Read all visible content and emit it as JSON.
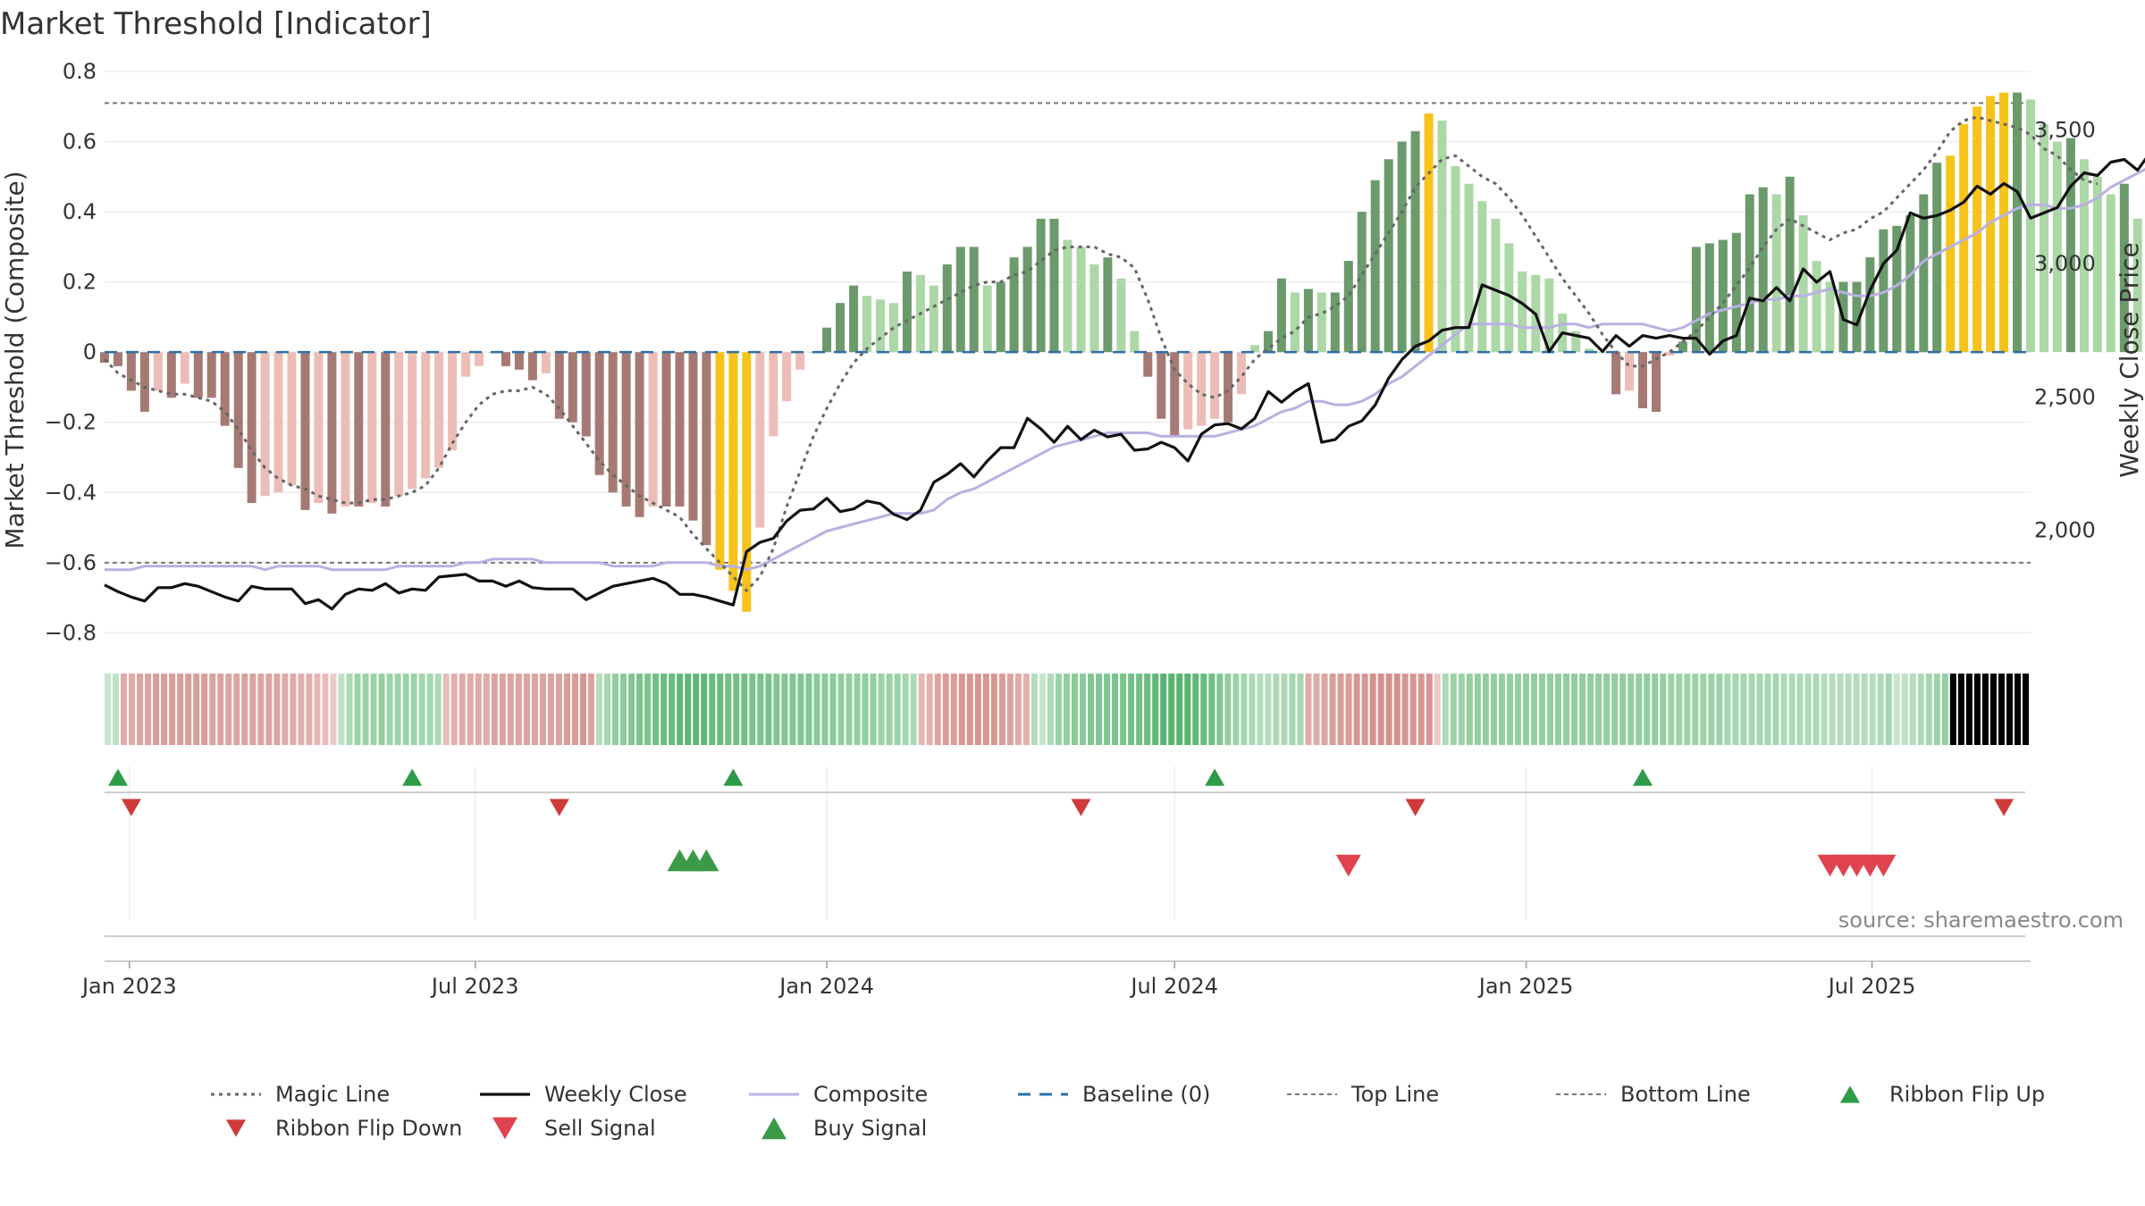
{
  "title": "Market Threshold [Indicator]",
  "source": "source: sharemaestro.com",
  "colors": {
    "bar_pos_strong": "#6b9a6b",
    "bar_pos_light": "#acd7a6",
    "bar_neg_strong": "#a67a74",
    "bar_neg_light": "#ecbdb6",
    "bar_extreme": "#f7c21a",
    "magic": "#666666",
    "close": "#111111",
    "composite": "#b9b0e3",
    "baseline": "#2c6fa6",
    "guide": "#777777",
    "flip_up": "#2e9b48",
    "flip_down": "#d13a3a",
    "sell": "#e0424f",
    "buy": "#3a9a48"
  },
  "chart_data": {
    "type": "bar",
    "left_axis": {
      "label": "Market Threshold (Composite)",
      "ylim": [
        -0.85,
        0.8
      ],
      "ticks": [
        0.8,
        0.6,
        0.4,
        0.2,
        0,
        -0.2,
        -0.4,
        -0.6,
        -0.8
      ],
      "tick_labels": [
        "0.8",
        "0.6",
        "0.4",
        "0.2",
        "0",
        "−0.2",
        "−0.4",
        "−0.6",
        "−0.8"
      ]
    },
    "right_axis": {
      "label": "Weekly Close Price",
      "ylim": [
        1550,
        3720
      ],
      "ticks": [
        3500,
        3000,
        2500,
        2000
      ],
      "tick_labels": [
        "3,500",
        "3,000",
        "2,500",
        "2,000"
      ]
    },
    "x_axis": {
      "start": "2022-12-19",
      "end": "2025-09-22",
      "ticks": [
        "2023-01-01",
        "2023-07-01",
        "2024-01-01",
        "2024-07-01",
        "2025-01-01",
        "2025-07-01"
      ],
      "tick_labels": [
        "Jan 2023",
        "Jul 2023",
        "Jan 2024",
        "Jul 2024",
        "Jan 2025",
        "Jul 2025"
      ]
    },
    "week_start": "2022-12-19",
    "guides": {
      "top_line": 0.71,
      "bottom_line": -0.6,
      "baseline": 0
    },
    "bars": [
      -0.03,
      -0.04,
      -0.11,
      -0.17,
      -0.11,
      -0.13,
      -0.09,
      -0.13,
      -0.13,
      -0.21,
      -0.33,
      -0.43,
      -0.41,
      -0.4,
      -0.38,
      -0.45,
      -0.43,
      -0.46,
      -0.44,
      -0.44,
      -0.43,
      -0.44,
      -0.41,
      -0.39,
      -0.36,
      -0.33,
      -0.28,
      -0.07,
      -0.04,
      -0.0,
      -0.04,
      -0.05,
      -0.08,
      -0.06,
      -0.19,
      -0.2,
      -0.24,
      -0.35,
      -0.4,
      -0.44,
      -0.47,
      -0.44,
      -0.44,
      -0.44,
      -0.48,
      -0.55,
      -0.62,
      -0.68,
      -0.74,
      -0.5,
      -0.24,
      -0.14,
      -0.05,
      0.0,
      0.07,
      0.14,
      0.19,
      0.16,
      0.15,
      0.14,
      0.23,
      0.22,
      0.19,
      0.25,
      0.3,
      0.3,
      0.19,
      0.2,
      0.27,
      0.3,
      0.38,
      0.38,
      0.32,
      0.3,
      0.25,
      0.27,
      0.21,
      0.06,
      -0.07,
      -0.19,
      -0.24,
      -0.22,
      -0.21,
      -0.19,
      -0.2,
      -0.12,
      0.02,
      0.06,
      0.21,
      0.17,
      0.18,
      0.17,
      0.17,
      0.26,
      0.4,
      0.49,
      0.55,
      0.6,
      0.63,
      0.68,
      0.66,
      0.53,
      0.48,
      0.43,
      0.38,
      0.31,
      0.23,
      0.22,
      0.21,
      0.11,
      0.06,
      0.01,
      0.0,
      -0.12,
      -0.11,
      -0.16,
      -0.17,
      -0.01,
      0.03,
      0.3,
      0.31,
      0.32,
      0.34,
      0.45,
      0.47,
      0.45,
      0.5,
      0.39,
      0.26,
      0.2,
      0.2,
      0.2,
      0.27,
      0.35,
      0.36,
      0.39,
      0.45,
      0.54,
      0.56,
      0.65,
      0.7,
      0.73,
      0.74,
      0.74,
      0.72,
      0.65,
      0.6,
      0.61,
      0.55,
      0.5,
      0.45,
      0.48,
      0.38,
      0.37
    ],
    "extreme_bars": [
      46,
      47,
      48,
      99,
      138,
      139,
      140,
      141,
      142
    ],
    "series": [
      {
        "name": "Magic Line",
        "values": [
          -0.02,
          -0.06,
          -0.08,
          -0.1,
          -0.11,
          -0.12,
          -0.12,
          -0.13,
          -0.14,
          -0.17,
          -0.22,
          -0.28,
          -0.33,
          -0.36,
          -0.38,
          -0.39,
          -0.41,
          -0.42,
          -0.43,
          -0.43,
          -0.42,
          -0.42,
          -0.41,
          -0.4,
          -0.38,
          -0.33,
          -0.26,
          -0.2,
          -0.15,
          -0.12,
          -0.11,
          -0.11,
          -0.1,
          -0.12,
          -0.16,
          -0.21,
          -0.26,
          -0.31,
          -0.35,
          -0.38,
          -0.41,
          -0.43,
          -0.45,
          -0.47,
          -0.52,
          -0.56,
          -0.6,
          -0.64,
          -0.68,
          -0.64,
          -0.56,
          -0.44,
          -0.34,
          -0.24,
          -0.16,
          -0.09,
          -0.03,
          0.01,
          0.04,
          0.07,
          0.09,
          0.11,
          0.13,
          0.15,
          0.17,
          0.19,
          0.2,
          0.2,
          0.22,
          0.23,
          0.26,
          0.29,
          0.3,
          0.3,
          0.3,
          0.28,
          0.27,
          0.24,
          0.15,
          0.04,
          -0.05,
          -0.09,
          -0.12,
          -0.13,
          -0.11,
          -0.07,
          -0.02,
          0.01,
          0.04,
          0.06,
          0.1,
          0.11,
          0.13,
          0.16,
          0.22,
          0.28,
          0.34,
          0.4,
          0.47,
          0.51,
          0.55,
          0.56,
          0.53,
          0.5,
          0.48,
          0.44,
          0.39,
          0.33,
          0.27,
          0.21,
          0.16,
          0.11,
          0.05,
          0.0,
          -0.04,
          -0.04,
          -0.02,
          0.0,
          0.03,
          0.06,
          0.1,
          0.14,
          0.19,
          0.24,
          0.3,
          0.35,
          0.38,
          0.36,
          0.34,
          0.32,
          0.34,
          0.35,
          0.38,
          0.4,
          0.44,
          0.48,
          0.52,
          0.57,
          0.63,
          0.66,
          0.67,
          0.66,
          0.65,
          0.64,
          0.62,
          0.58,
          0.56,
          0.52,
          0.49,
          0.48
        ]
      },
      {
        "name": "Weekly Close",
        "values": [
          1795,
          1770,
          1750,
          1735,
          1785,
          1785,
          1800,
          1790,
          1770,
          1750,
          1735,
          1790,
          1780,
          1780,
          1780,
          1725,
          1740,
          1705,
          1760,
          1780,
          1775,
          1800,
          1765,
          1780,
          1775,
          1825,
          1830,
          1835,
          1810,
          1810,
          1790,
          1810,
          1785,
          1780,
          1780,
          1780,
          1740,
          1765,
          1790,
          1800,
          1810,
          1820,
          1800,
          1760,
          1760,
          1750,
          1735,
          1720,
          1920,
          1955,
          1970,
          2035,
          2075,
          2080,
          2120,
          2070,
          2080,
          2110,
          2100,
          2060,
          2040,
          2075,
          2180,
          2210,
          2250,
          2200,
          2260,
          2310,
          2310,
          2420,
          2380,
          2330,
          2390,
          2340,
          2375,
          2350,
          2360,
          2300,
          2305,
          2330,
          2310,
          2260,
          2360,
          2395,
          2400,
          2380,
          2420,
          2520,
          2480,
          2520,
          2550,
          2330,
          2340,
          2390,
          2410,
          2470,
          2570,
          2640,
          2690,
          2710,
          2750,
          2760,
          2760,
          2920,
          2900,
          2880,
          2850,
          2810,
          2670,
          2740,
          2730,
          2720,
          2670,
          2730,
          2690,
          2730,
          2720,
          2730,
          2720,
          2720,
          2660,
          2710,
          2730,
          2870,
          2860,
          2910,
          2860,
          2980,
          2930,
          2970,
          2790,
          2770,
          2900,
          3000,
          3050,
          3190,
          3170,
          3180,
          3200,
          3230,
          3290,
          3260,
          3300,
          3270,
          3170,
          3190,
          3210,
          3290,
          3340,
          3330,
          3380,
          3390,
          3350,
          3420
        ]
      },
      {
        "name": "Composite",
        "values": [
          -0.62,
          -0.62,
          -0.62,
          -0.61,
          -0.61,
          -0.61,
          -0.61,
          -0.61,
          -0.61,
          -0.61,
          -0.61,
          -0.61,
          -0.62,
          -0.61,
          -0.61,
          -0.61,
          -0.61,
          -0.62,
          -0.62,
          -0.62,
          -0.62,
          -0.62,
          -0.61,
          -0.61,
          -0.61,
          -0.61,
          -0.61,
          -0.6,
          -0.6,
          -0.59,
          -0.59,
          -0.59,
          -0.59,
          -0.6,
          -0.6,
          -0.6,
          -0.6,
          -0.6,
          -0.61,
          -0.61,
          -0.61,
          -0.61,
          -0.6,
          -0.6,
          -0.6,
          -0.6,
          -0.61,
          -0.61,
          -0.62,
          -0.61,
          -0.59,
          -0.57,
          -0.55,
          -0.53,
          -0.51,
          -0.5,
          -0.49,
          -0.48,
          -0.47,
          -0.46,
          -0.46,
          -0.46,
          -0.45,
          -0.42,
          -0.4,
          -0.39,
          -0.37,
          -0.35,
          -0.33,
          -0.31,
          -0.29,
          -0.27,
          -0.26,
          -0.25,
          -0.24,
          -0.23,
          -0.23,
          -0.23,
          -0.23,
          -0.24,
          -0.24,
          -0.24,
          -0.24,
          -0.24,
          -0.23,
          -0.22,
          -0.21,
          -0.19,
          -0.17,
          -0.16,
          -0.14,
          -0.14,
          -0.15,
          -0.15,
          -0.14,
          -0.12,
          -0.09,
          -0.07,
          -0.04,
          -0.01,
          0.02,
          0.05,
          0.08,
          0.08,
          0.08,
          0.08,
          0.07,
          0.07,
          0.07,
          0.08,
          0.08,
          0.07,
          0.08,
          0.08,
          0.08,
          0.08,
          0.07,
          0.06,
          0.07,
          0.09,
          0.11,
          0.12,
          0.13,
          0.14,
          0.15,
          0.15,
          0.16,
          0.16,
          0.17,
          0.18,
          0.17,
          0.16,
          0.16,
          0.17,
          0.19,
          0.22,
          0.26,
          0.28,
          0.3,
          0.32,
          0.34,
          0.37,
          0.39,
          0.41,
          0.42,
          0.42,
          0.41,
          0.41,
          0.42,
          0.44,
          0.47,
          0.49,
          0.51,
          0.53
        ]
      }
    ],
    "ribbon": {
      "sign": [
        1,
        1,
        -1,
        -1,
        -1,
        -1,
        -1,
        -1,
        -1,
        -1,
        -1,
        -1,
        -1,
        -1,
        -1,
        -1,
        -1,
        -1,
        -1,
        -1,
        -1,
        -1,
        -1,
        -1,
        -1,
        -1,
        -1,
        -1,
        -1,
        1,
        1,
        1,
        1,
        1,
        1,
        1,
        1,
        1,
        1,
        1,
        1,
        1,
        -1,
        -1,
        -1,
        -1,
        -1,
        -1,
        -1,
        -1,
        -1,
        -1,
        -1,
        -1,
        -1,
        -1,
        -1,
        -1,
        -1,
        -1,
        -1,
        1,
        1,
        1,
        1,
        1,
        1,
        1,
        1,
        1,
        1,
        1,
        1,
        1,
        1,
        1,
        1,
        1,
        1,
        1,
        1,
        1,
        1,
        1,
        1,
        1,
        1,
        1,
        1,
        1,
        1,
        1,
        1,
        1,
        1,
        1,
        1,
        1,
        1,
        1,
        1,
        -1,
        -1,
        -1,
        -1,
        -1,
        -1,
        -1,
        -1,
        -1,
        -1,
        -1,
        -1,
        -1,
        -1,
        1,
        1,
        1,
        1,
        1,
        1,
        1,
        1,
        1,
        1,
        1,
        1,
        1,
        1,
        1,
        1,
        1,
        1,
        1,
        1,
        1,
        1,
        1,
        1,
        1,
        1,
        1,
        1,
        1,
        1,
        1,
        1,
        1,
        1,
        -1,
        -1,
        -1,
        -1,
        -1,
        -1,
        -1,
        -1,
        -1,
        -1,
        -1,
        -1,
        -1,
        -1,
        -1,
        -1,
        -1,
        1,
        1,
        1,
        1,
        1,
        1,
        1,
        1,
        1,
        1,
        1,
        1,
        1,
        1,
        1,
        1,
        1,
        1,
        1,
        1,
        1,
        1,
        1,
        1,
        1,
        1,
        1,
        1,
        1,
        1,
        1,
        1,
        1,
        1,
        1,
        1,
        1,
        1,
        1,
        1,
        1,
        1,
        1,
        1,
        1,
        1,
        1,
        1,
        1,
        1,
        1,
        1,
        1,
        1,
        1,
        1,
        1,
        1,
        1,
        1,
        1,
        1,
        1,
        1,
        1,
        1,
        1,
        -1,
        -1,
        -1,
        -1,
        -1,
        -1
      ],
      "intensity": [
        0.2,
        0.25,
        0.45,
        0.45,
        0.5,
        0.5,
        0.55,
        0.55,
        0.55,
        0.55,
        0.55,
        0.55,
        0.55,
        0.5,
        0.5,
        0.5,
        0.5,
        0.5,
        0.5,
        0.5,
        0.5,
        0.5,
        0.45,
        0.45,
        0.4,
        0.4,
        0.35,
        0.3,
        0.2,
        0.25,
        0.35,
        0.45,
        0.45,
        0.45,
        0.5,
        0.45,
        0.45,
        0.45,
        0.45,
        0.4,
        0.4,
        0.35,
        0.3,
        0.4,
        0.45,
        0.45,
        0.45,
        0.45,
        0.5,
        0.5,
        0.5,
        0.5,
        0.5,
        0.5,
        0.5,
        0.5,
        0.5,
        0.55,
        0.55,
        0.6,
        0.5,
        0.3,
        0.4,
        0.5,
        0.55,
        0.6,
        0.65,
        0.65,
        0.7,
        0.75,
        0.75,
        0.8,
        0.8,
        0.8,
        0.8,
        0.75,
        0.75,
        0.7,
        0.7,
        0.7,
        0.65,
        0.65,
        0.65,
        0.6,
        0.6,
        0.6,
        0.6,
        0.6,
        0.55,
        0.55,
        0.55,
        0.5,
        0.5,
        0.5,
        0.5,
        0.5,
        0.45,
        0.45,
        0.45,
        0.4,
        0.35,
        0.35,
        0.4,
        0.5,
        0.55,
        0.55,
        0.6,
        0.6,
        0.6,
        0.6,
        0.6,
        0.55,
        0.5,
        0.45,
        0.4,
        0.3,
        0.2,
        0.35,
        0.45,
        0.5,
        0.55,
        0.55,
        0.6,
        0.6,
        0.6,
        0.65,
        0.65,
        0.7,
        0.7,
        0.75,
        0.8,
        0.85,
        0.85,
        0.85,
        0.85,
        0.8,
        0.75,
        0.7,
        0.6,
        0.5,
        0.45,
        0.4,
        0.35,
        0.3,
        0.3,
        0.35,
        0.35,
        0.4,
        0.4,
        0.45,
        0.45,
        0.5,
        0.55,
        0.55,
        0.55,
        0.6,
        0.6,
        0.65,
        0.65,
        0.65,
        0.65,
        0.6,
        0.6,
        0.6,
        0.6,
        0.2,
        0.35,
        0.45,
        0.45,
        0.5,
        0.5,
        0.5,
        0.5,
        0.5,
        0.5,
        0.5,
        0.5,
        0.5,
        0.5,
        0.5,
        0.5,
        0.5,
        0.5,
        0.5,
        0.5,
        0.5,
        0.5,
        0.5,
        0.5,
        0.5,
        0.5,
        0.5,
        0.5,
        0.5,
        0.45,
        0.45,
        0.45,
        0.45,
        0.45,
        0.45,
        0.45,
        0.4,
        0.4,
        0.4,
        0.4,
        0.4,
        0.4,
        0.4,
        0.35,
        0.35,
        0.35,
        0.35,
        0.35,
        0.3,
        0.3,
        0.3,
        0.3,
        0.3,
        0.3,
        0.3,
        0.35,
        0.4,
        0.2,
        0.25,
        0.3,
        0.35,
        0.4,
        0.45,
        0.5
      ]
    },
    "markers": {
      "ribbon_flip_up": [
        "2022-12-26",
        "2023-05-29",
        "2023-11-13",
        "2024-07-22",
        "2025-03-03"
      ],
      "ribbon_flip_down": [
        "2023-01-02",
        "2023-08-14",
        "2024-05-13",
        "2024-11-04",
        "2025-09-08"
      ],
      "buy_signal": [
        "2023-10-16",
        "2023-10-23",
        "2023-10-30"
      ],
      "sell_signal": [
        "2024-09-30",
        "2025-06-09",
        "2025-06-16",
        "2025-06-23",
        "2025-06-30",
        "2025-07-07"
      ]
    },
    "legend": [
      "Magic Line",
      "Weekly Close",
      "Composite",
      "Baseline (0)",
      "Top Line",
      "Bottom Line",
      "Ribbon Flip Up",
      "Ribbon Flip Down",
      "Sell Signal",
      "Buy Signal"
    ],
    "legend_position": "bottom",
    "grid": true
  }
}
